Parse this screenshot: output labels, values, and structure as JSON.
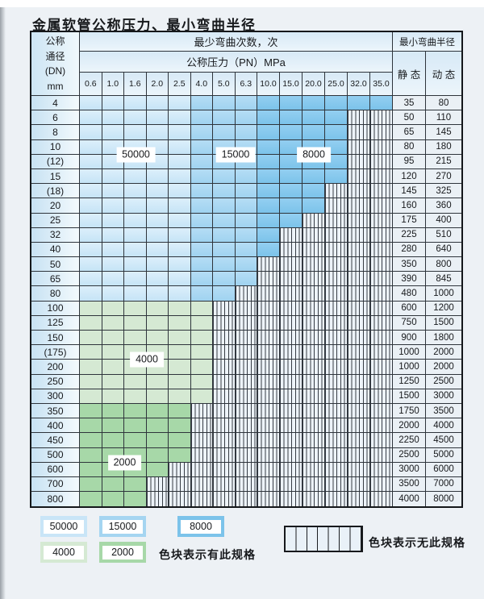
{
  "title": "金属软管公称压力、最小弯曲半径",
  "table": {
    "header": {
      "dn_lines": "公称\n通径\n(DN)\nmm",
      "bend_cycles": "最少弯曲次数，次",
      "pressure": "公称压力（PN）MPa",
      "min_bend_radius": "最小弯曲半径",
      "static_label": "静 态",
      "dynamic_label": "动 态",
      "pressure_values": [
        "0.6",
        "1.0",
        "1.6",
        "2.0",
        "2.5",
        "4.0",
        "5.0",
        "6.3",
        "10.0",
        "15.0",
        "20.0",
        "25.0",
        "32.0",
        "35.0"
      ]
    },
    "rows": [
      {
        "dn": "4",
        "group": "blue",
        "colored": 14,
        "static": "35",
        "dynamic": "80"
      },
      {
        "dn": "6",
        "group": "blue",
        "colored": 12,
        "static": "50",
        "dynamic": "110"
      },
      {
        "dn": "8",
        "group": "blue",
        "colored": 12,
        "static": "65",
        "dynamic": "145"
      },
      {
        "dn": "10",
        "group": "blue",
        "colored": 12,
        "static": "80",
        "dynamic": "180"
      },
      {
        "dn": "(12)",
        "group": "blue",
        "colored": 12,
        "static": "95",
        "dynamic": "215"
      },
      {
        "dn": "15",
        "group": "blue",
        "colored": 12,
        "static": "120",
        "dynamic": "270"
      },
      {
        "dn": "(18)",
        "group": "blue",
        "colored": 11,
        "static": "145",
        "dynamic": "325"
      },
      {
        "dn": "20",
        "group": "blue",
        "colored": 11,
        "static": "160",
        "dynamic": "360"
      },
      {
        "dn": "25",
        "group": "blue",
        "colored": 10,
        "static": "175",
        "dynamic": "400"
      },
      {
        "dn": "32",
        "group": "blue",
        "colored": 9,
        "static": "225",
        "dynamic": "510"
      },
      {
        "dn": "40",
        "group": "blue",
        "colored": 9,
        "static": "280",
        "dynamic": "640"
      },
      {
        "dn": "50",
        "group": "blue",
        "colored": 8,
        "static": "350",
        "dynamic": "800"
      },
      {
        "dn": "65",
        "group": "blue",
        "colored": 8,
        "static": "390",
        "dynamic": "845"
      },
      {
        "dn": "80",
        "group": "blue",
        "colored": 7,
        "static": "480",
        "dynamic": "1000"
      },
      {
        "dn": "100",
        "group": "green-light",
        "colored": 6,
        "static": "600",
        "dynamic": "1200"
      },
      {
        "dn": "125",
        "group": "green-light",
        "colored": 6,
        "static": "750",
        "dynamic": "1500"
      },
      {
        "dn": "150",
        "group": "green-light",
        "colored": 6,
        "static": "900",
        "dynamic": "1800"
      },
      {
        "dn": "(175)",
        "group": "green-light",
        "colored": 6,
        "static": "1000",
        "dynamic": "2000"
      },
      {
        "dn": "200",
        "group": "green-light",
        "colored": 6,
        "static": "1000",
        "dynamic": "2000"
      },
      {
        "dn": "250",
        "group": "green-light",
        "colored": 6,
        "static": "1250",
        "dynamic": "2500"
      },
      {
        "dn": "300",
        "group": "green-light",
        "colored": 6,
        "static": "1500",
        "dynamic": "3000"
      },
      {
        "dn": "350",
        "group": "green-dark",
        "colored": 5,
        "static": "1750",
        "dynamic": "3500"
      },
      {
        "dn": "400",
        "group": "green-dark",
        "colored": 5,
        "static": "2000",
        "dynamic": "4000"
      },
      {
        "dn": "450",
        "group": "green-dark",
        "colored": 5,
        "static": "2250",
        "dynamic": "4500"
      },
      {
        "dn": "500",
        "group": "green-dark",
        "colored": 5,
        "static": "2500",
        "dynamic": "5000"
      },
      {
        "dn": "600",
        "group": "green-dark",
        "colored": 4,
        "static": "3000",
        "dynamic": "6000"
      },
      {
        "dn": "700",
        "group": "green-dark",
        "colored": 3,
        "static": "3500",
        "dynamic": "7000"
      },
      {
        "dn": "800",
        "group": "green-dark",
        "colored": 3,
        "static": "4000",
        "dynamic": "8000"
      }
    ]
  },
  "overlays": [
    {
      "text": "50000",
      "row": 4,
      "col_start": 2,
      "col_end": 4
    },
    {
      "text": "15000",
      "row": 4,
      "col_start": 7,
      "col_end": 8
    },
    {
      "text": "8000",
      "row": 4,
      "col_start": 10,
      "col_end": 12
    },
    {
      "text": "4000",
      "row": 18,
      "col_start": 3,
      "col_end": 4
    },
    {
      "text": "2000",
      "row": 25,
      "col_start": 2,
      "col_end": 3
    }
  ],
  "legend": {
    "items": [
      {
        "label": "50000",
        "color": "#c9e5f7"
      },
      {
        "label": "15000",
        "color": "#a5d5f1"
      },
      {
        "label": "8000",
        "color": "#7cc3ea"
      },
      {
        "label": "4000",
        "color": "#d5e9d3"
      },
      {
        "label": "2000",
        "color": "#a7d8a8"
      }
    ],
    "has_spec_text": "色块表示有此规格",
    "no_spec_text": "色块表示无此规格"
  },
  "colors": {
    "blue_50000": "#c9e5f7",
    "blue_15000": "#a5d5f1",
    "blue_8000": "#7cc3ea",
    "green_4000": "#d5e9d3",
    "green_2000": "#a7d8a8",
    "hatch_bg": "#edf3f9",
    "grid_line": "#2e343b"
  }
}
